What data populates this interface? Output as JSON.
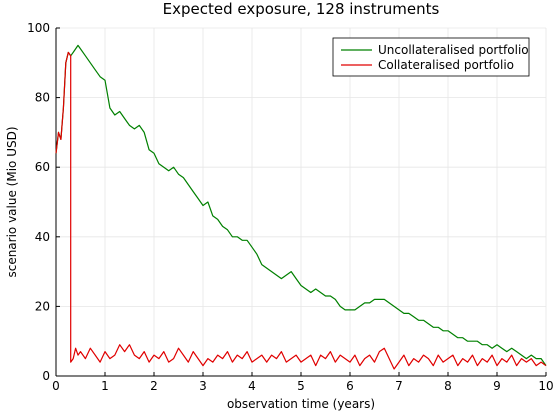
{
  "chart_data": {
    "type": "line",
    "title": "Expected exposure, 128 instruments",
    "xlabel": "observation time  (years)",
    "ylabel": "scenario value (Mio USD)",
    "xlim": [
      0,
      10
    ],
    "ylim": [
      0,
      100
    ],
    "xticks": [
      0,
      1,
      2,
      3,
      4,
      5,
      6,
      7,
      8,
      9,
      10
    ],
    "yticks": [
      0,
      20,
      40,
      60,
      80,
      100
    ],
    "grid": true,
    "legend_position": "top-right",
    "series": [
      {
        "name": "Uncollateralised portfolio",
        "color": "#008000",
        "x": [
          0,
          0.05,
          0.1,
          0.15,
          0.2,
          0.25,
          0.3,
          0.35,
          0.4,
          0.45,
          0.5,
          0.6,
          0.7,
          0.8,
          0.9,
          1.0,
          1.1,
          1.2,
          1.3,
          1.4,
          1.5,
          1.6,
          1.7,
          1.8,
          1.9,
          2.0,
          2.1,
          2.2,
          2.3,
          2.4,
          2.5,
          2.6,
          2.7,
          2.8,
          2.9,
          3.0,
          3.1,
          3.2,
          3.3,
          3.4,
          3.5,
          3.6,
          3.7,
          3.8,
          3.9,
          4.0,
          4.1,
          4.2,
          4.3,
          4.4,
          4.5,
          4.6,
          4.7,
          4.8,
          4.9,
          5.0,
          5.1,
          5.2,
          5.3,
          5.4,
          5.5,
          5.6,
          5.7,
          5.8,
          5.9,
          6.0,
          6.1,
          6.2,
          6.3,
          6.4,
          6.5,
          6.6,
          6.7,
          6.8,
          6.9,
          7.0,
          7.1,
          7.2,
          7.3,
          7.4,
          7.5,
          7.6,
          7.7,
          7.8,
          7.9,
          8.0,
          8.1,
          8.2,
          8.3,
          8.4,
          8.5,
          8.6,
          8.7,
          8.8,
          8.9,
          9.0,
          9.1,
          9.2,
          9.3,
          9.4,
          9.5,
          9.6,
          9.7,
          9.8,
          9.9,
          10.0
        ],
        "values": [
          64,
          70,
          68,
          77,
          90,
          93,
          92,
          93,
          94,
          95,
          94,
          92,
          90,
          88,
          86,
          85,
          77,
          75,
          76,
          74,
          72,
          71,
          72,
          70,
          65,
          64,
          61,
          60,
          59,
          60,
          58,
          57,
          55,
          53,
          51,
          49,
          50,
          46,
          45,
          43,
          42,
          40,
          40,
          39,
          39,
          37,
          35,
          32,
          31,
          30,
          29,
          28,
          29,
          30,
          28,
          26,
          25,
          24,
          25,
          24,
          23,
          23,
          22,
          20,
          19,
          19,
          19,
          20,
          21,
          21,
          22,
          22,
          22,
          21,
          20,
          19,
          18,
          18,
          17,
          16,
          16,
          15,
          14,
          14,
          13,
          13,
          12,
          11,
          11,
          10,
          10,
          10,
          9,
          9,
          8,
          9,
          8,
          7,
          8,
          7,
          6,
          5,
          6,
          5,
          5,
          3
        ]
      },
      {
        "name": "Collateralised portfolio",
        "color": "#e00000",
        "x": [
          0,
          0.05,
          0.1,
          0.15,
          0.2,
          0.25,
          0.3,
          0.3,
          0.35,
          0.4,
          0.45,
          0.5,
          0.6,
          0.7,
          0.8,
          0.9,
          1.0,
          1.1,
          1.2,
          1.3,
          1.4,
          1.5,
          1.6,
          1.7,
          1.8,
          1.9,
          2.0,
          2.1,
          2.2,
          2.3,
          2.4,
          2.5,
          2.6,
          2.7,
          2.8,
          2.9,
          3.0,
          3.1,
          3.2,
          3.3,
          3.4,
          3.5,
          3.6,
          3.7,
          3.8,
          3.9,
          4.0,
          4.1,
          4.2,
          4.3,
          4.4,
          4.5,
          4.6,
          4.7,
          4.8,
          4.9,
          5.0,
          5.1,
          5.2,
          5.3,
          5.4,
          5.5,
          5.6,
          5.7,
          5.8,
          5.9,
          6.0,
          6.1,
          6.2,
          6.3,
          6.4,
          6.5,
          6.6,
          6.7,
          6.8,
          6.9,
          7.0,
          7.1,
          7.2,
          7.3,
          7.4,
          7.5,
          7.6,
          7.7,
          7.8,
          7.9,
          8.0,
          8.1,
          8.2,
          8.3,
          8.4,
          8.5,
          8.6,
          8.7,
          8.8,
          8.9,
          9.0,
          9.1,
          9.2,
          9.3,
          9.4,
          9.5,
          9.6,
          9.7,
          9.8,
          9.9,
          10.0
        ],
        "values": [
          64,
          70,
          68,
          77,
          90,
          93,
          92,
          4,
          5,
          8,
          6,
          7,
          5,
          8,
          6,
          4,
          7,
          5,
          6,
          9,
          7,
          9,
          6,
          5,
          7,
          4,
          6,
          5,
          7,
          4,
          5,
          8,
          6,
          4,
          7,
          5,
          3,
          5,
          4,
          6,
          5,
          7,
          4,
          6,
          5,
          7,
          4,
          5,
          6,
          4,
          6,
          5,
          7,
          4,
          5,
          6,
          4,
          5,
          6,
          3,
          6,
          5,
          7,
          4,
          6,
          5,
          4,
          6,
          3,
          5,
          6,
          4,
          7,
          8,
          5,
          2,
          4,
          6,
          3,
          5,
          4,
          6,
          5,
          3,
          6,
          4,
          5,
          6,
          3,
          5,
          4,
          6,
          3,
          5,
          4,
          6,
          3,
          5,
          4,
          6,
          3,
          5,
          4,
          5,
          3,
          4,
          3
        ]
      }
    ]
  }
}
